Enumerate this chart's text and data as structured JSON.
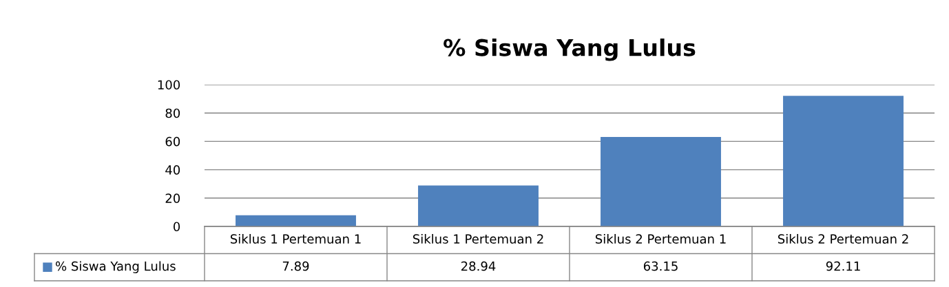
{
  "chart_data": {
    "type": "bar",
    "title": "% Siswa Yang Lulus",
    "categories": [
      "Siklus 1 Pertemuan 1",
      "Siklus 1 Pertemuan 2",
      "Siklus 2 Pertemuan 1",
      "Siklus 2 Pertemuan 2"
    ],
    "series": [
      {
        "name": "% Siswa Yang Lulus",
        "color": "#4f81bd",
        "values": [
          7.89,
          28.94,
          63.15,
          92.11
        ]
      }
    ],
    "ylim": [
      0,
      100
    ],
    "yticks": [
      0,
      20,
      40,
      60,
      80,
      100
    ],
    "grid": "y",
    "data_labels": true,
    "legend": "bottom"
  }
}
